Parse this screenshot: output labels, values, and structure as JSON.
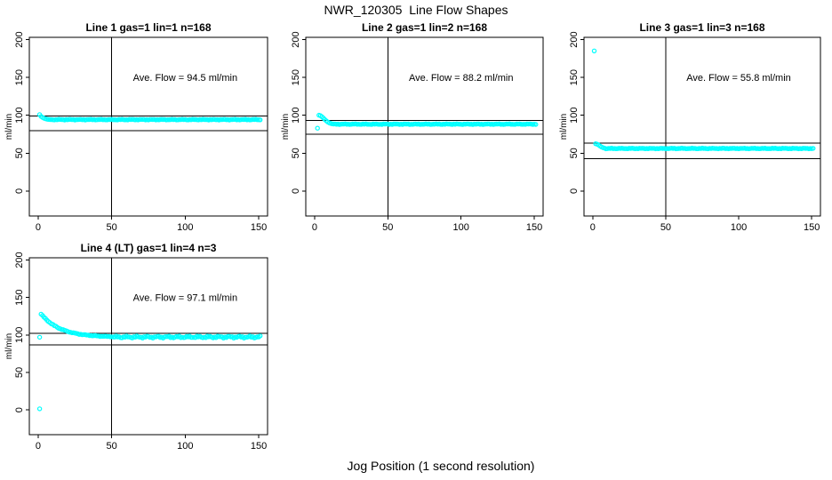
{
  "figure": {
    "title": "NWR_120305  Line Flow Shapes",
    "xlabel": "Jog Position (1 second resolution)",
    "point_color": "#00FFFF",
    "line_color": "#000000",
    "background": "#FFFFFF"
  },
  "chart_data": [
    {
      "type": "scatter",
      "title": "Line 1 gas=1 lin=1 n=168",
      "annotation": "Ave. Flow =  94.5  ml/min",
      "annotation_xy": [
        100,
        150
      ],
      "ave_flow": 94.5,
      "n": 168,
      "ylabel": "ml/min",
      "x_ticks": [
        0,
        50,
        100,
        150
      ],
      "y_ticks": [
        0,
        50,
        100,
        150,
        200
      ],
      "xlim": [
        -6,
        156
      ],
      "ylim": [
        -33,
        203
      ],
      "ref_hlines": [
        99,
        80
      ],
      "ref_vline": 50,
      "series": {
        "isolated_points": [
          [
            1,
            101
          ]
        ],
        "transient": [
          [
            2,
            98.5
          ],
          [
            3,
            97.2
          ],
          [
            4,
            96.2
          ],
          [
            5,
            95.4
          ],
          [
            6,
            94.9
          ],
          [
            7,
            94.6
          ]
        ],
        "transient_noise": 0,
        "plateau": {
          "x_start": 8,
          "x_end": 151,
          "value": 94.3,
          "noise": 0.5
        }
      }
    },
    {
      "type": "scatter",
      "title": "Line 2 gas=1 lin=2 n=168",
      "annotation": "Ave. Flow =  88.2  ml/min",
      "annotation_xy": [
        100,
        150
      ],
      "ave_flow": 88.2,
      "n": 168,
      "ylabel": "ml/min",
      "x_ticks": [
        0,
        50,
        100,
        150
      ],
      "y_ticks": [
        0,
        50,
        100,
        150,
        200
      ],
      "xlim": [
        -6,
        156
      ],
      "ylim": [
        -33,
        203
      ],
      "ref_hlines": [
        93,
        75
      ],
      "ref_vline": 50,
      "series": {
        "isolated_points": [
          [
            2,
            83
          ]
        ],
        "transient": [
          [
            3,
            100.2
          ],
          [
            4,
            99.6
          ],
          [
            5,
            98.2
          ],
          [
            6,
            96.4
          ],
          [
            7,
            94.4
          ],
          [
            8,
            92.6
          ],
          [
            9,
            91.2
          ],
          [
            10,
            90.1
          ],
          [
            11,
            89.3
          ],
          [
            12,
            88.8
          ]
        ],
        "transient_noise": 0,
        "plateau": {
          "x_start": 13,
          "x_end": 151,
          "value": 88.3,
          "noise": 0.5
        }
      }
    },
    {
      "type": "scatter",
      "title": "Line 3 gas=1 lin=3 n=168",
      "annotation": "Ave. Flow =  55.8  ml/min",
      "annotation_xy": [
        100,
        150
      ],
      "ave_flow": 55.8,
      "n": 168,
      "ylabel": "ml/min",
      "x_ticks": [
        0,
        50,
        100,
        150
      ],
      "y_ticks": [
        0,
        50,
        100,
        150,
        200
      ],
      "xlim": [
        -6,
        156
      ],
      "ylim": [
        -33,
        203
      ],
      "ref_hlines": [
        63,
        43
      ],
      "ref_vline": 50,
      "series": {
        "isolated_points": [
          [
            1,
            185
          ]
        ],
        "transient": [
          [
            2,
            62.5
          ],
          [
            3,
            61.9
          ],
          [
            4,
            60.8
          ],
          [
            5,
            59.4
          ],
          [
            6,
            58.2
          ],
          [
            7,
            57.3
          ],
          [
            8,
            56.7
          ]
        ],
        "transient_noise": 0,
        "plateau": {
          "x_start": 9,
          "x_end": 151,
          "value": 56.2,
          "noise": 0.5
        }
      }
    },
    {
      "type": "scatter",
      "title": "Line 4 (LT) gas=1 lin=4 n=3",
      "annotation": "Ave. Flow =  97.1  ml/min",
      "annotation_xy": [
        100,
        150
      ],
      "ave_flow": 97.1,
      "n": 3,
      "ylabel": "ml/min",
      "x_ticks": [
        0,
        50,
        100,
        150
      ],
      "y_ticks": [
        0,
        50,
        100,
        150,
        200
      ],
      "xlim": [
        -6,
        156
      ],
      "ylim": [
        -33,
        203
      ],
      "ref_hlines": [
        102,
        87
      ],
      "ref_vline": 50,
      "series": {
        "isolated_points": [
          [
            1,
            1.5
          ],
          [
            1,
            97
          ]
        ],
        "transient": [
          [
            2,
            128
          ],
          [
            3,
            125.7
          ],
          [
            4,
            123.6
          ],
          [
            5,
            121.6
          ],
          [
            6,
            119.8
          ],
          [
            7,
            118.1
          ],
          [
            8,
            116.6
          ],
          [
            9,
            115.1
          ],
          [
            10,
            113.8
          ],
          [
            11,
            112.5
          ],
          [
            12,
            111.4
          ],
          [
            13,
            110.3
          ],
          [
            14,
            109.3
          ],
          [
            15,
            108.4
          ],
          [
            16,
            107.6
          ],
          [
            17,
            106.8
          ],
          [
            18,
            106.1
          ],
          [
            19,
            105.4
          ],
          [
            20,
            104.8
          ],
          [
            21,
            104.2
          ],
          [
            22,
            103.7
          ],
          [
            23,
            103.2
          ],
          [
            24,
            102.7
          ],
          [
            25,
            102.3
          ],
          [
            26,
            101.9
          ],
          [
            27,
            101.5
          ],
          [
            28,
            101.2
          ],
          [
            29,
            100.9
          ],
          [
            30,
            100.6
          ],
          [
            31,
            100.3
          ],
          [
            32,
            100.1
          ],
          [
            33,
            99.9
          ],
          [
            34,
            99.7
          ],
          [
            35,
            99.5
          ],
          [
            36,
            99.3
          ],
          [
            37,
            99.1
          ],
          [
            38,
            99.0
          ],
          [
            39,
            98.8
          ],
          [
            40,
            98.7
          ],
          [
            41,
            98.6
          ],
          [
            42,
            98.5
          ],
          [
            43,
            98.4
          ],
          [
            44,
            98.3
          ],
          [
            45,
            98.2
          ],
          [
            46,
            98.1
          ],
          [
            47,
            98.0
          ],
          [
            48,
            98.0
          ],
          [
            49,
            97.9
          ],
          [
            50,
            97.8
          ]
        ],
        "transient_noise": 0.5,
        "plateau": {
          "x_start": 51,
          "x_end": 151,
          "value": 97.3,
          "noise": 1.5
        }
      }
    }
  ]
}
